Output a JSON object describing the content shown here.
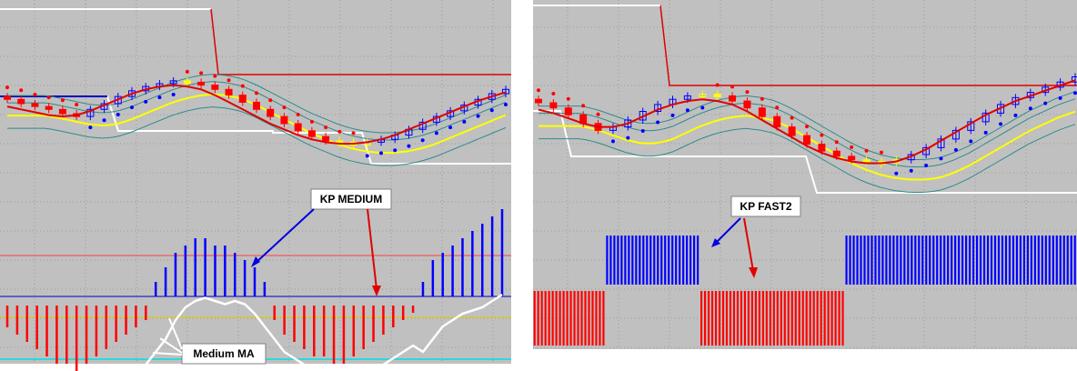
{
  "colors": {
    "background": "#c0c0c0",
    "grid": "#9a9a9a",
    "bull_candle": "#0000ff",
    "bear_candle": "#ff0000",
    "neutral_candle": "#ffff00",
    "ma_red": "#e00000",
    "ma_yellow": "#ffff00",
    "band_teal": "#2e8b8b",
    "envelope_white": "#ffffff",
    "histogram_up": "#0000ff",
    "histogram_down": "#ff0000",
    "level_red": "#ff4040",
    "level_blue": "#0000c0",
    "level_yellow": "#e0d000",
    "level_cyan": "#00e0e0",
    "arrow_blue": "#0000e0",
    "arrow_red": "#e00000"
  },
  "chart_data": [
    {
      "type": "bar",
      "panel": "left",
      "callouts": [
        "KP MEDIUM",
        "Medium MA"
      ],
      "price": {
        "closes": [
          115,
          112,
          110,
          108,
          105,
          103,
          108,
          112,
          117,
          121,
          124,
          126,
          128,
          127,
          125,
          122,
          118,
          113,
          108,
          103,
          98,
          93,
          89,
          86,
          85,
          84,
          85,
          87,
          90,
          94,
          99,
          103,
          107,
          111,
          115,
          119,
          122
        ],
        "red_ma": [
          110,
          108,
          106,
          104,
          103,
          104,
          107,
          111,
          115,
          119,
          122,
          124,
          125,
          124,
          122,
          118,
          113,
          108,
          103,
          98,
          94,
          90,
          87,
          85,
          84,
          84,
          85,
          87,
          90,
          94,
          98,
          102,
          106,
          110,
          114,
          117,
          120
        ]
      },
      "histogram": {
        "values": [
          -3,
          -4,
          -5,
          -6,
          -7,
          -8,
          -8,
          -9,
          -8,
          -7,
          -6,
          -5,
          -4,
          -3,
          -2,
          2,
          4,
          6,
          7,
          8,
          8,
          7,
          7,
          6,
          5,
          4,
          2,
          -2,
          -4,
          -5,
          -6,
          -7,
          -7,
          -8,
          -8,
          -7,
          -6,
          -5,
          -4,
          -3,
          -2,
          -1,
          2,
          5,
          6,
          7,
          8,
          9,
          10,
          11,
          12
        ]
      },
      "medium_ma": [
        -6,
        -7,
        -6.5,
        -7.5,
        -7,
        -6,
        -6.5,
        -7,
        -6.5,
        -7.5,
        -8,
        -6.5,
        -7,
        -7.5,
        -5,
        -3,
        -1,
        2,
        4,
        5,
        5.5,
        5,
        4.5,
        5,
        4.5,
        3,
        1,
        -1,
        -3,
        -4,
        -5,
        -5.5,
        -6,
        -6.5,
        -7,
        -7.5,
        -7,
        -6,
        -5,
        -4,
        -3,
        -2,
        -3,
        -1,
        1,
        2,
        3,
        3.5,
        4,
        5,
        6
      ]
    },
    {
      "type": "bar",
      "panel": "right",
      "callouts": [
        "KP FAST2"
      ],
      "price": {
        "closes": [
          120,
          117,
          113,
          108,
          104,
          106,
          110,
          115,
          119,
          122,
          124,
          125,
          124,
          121,
          117,
          112,
          106,
          101,
          96,
          92,
          89,
          87,
          86,
          86,
          87,
          90,
          94,
          99,
          104,
          109,
          114,
          119,
          123,
          126,
          129,
          132,
          135
        ],
        "red_ma": [
          116,
          114,
          111,
          108,
          106,
          106,
          108,
          112,
          116,
          119,
          121,
          122,
          121,
          119,
          115,
          110,
          105,
          100,
          95,
          91,
          88,
          86,
          85,
          85,
          86,
          89,
          93,
          98,
          103,
          108,
          113,
          117,
          121,
          124,
          127,
          130,
          133
        ]
      },
      "signal_blocks": [
        -1,
        -1,
        -1,
        -1,
        -1,
        -1,
        -1,
        -1,
        -1,
        -1,
        -1,
        -1,
        -1,
        -1,
        -1,
        -1,
        -1,
        -1,
        -1,
        -1,
        1,
        1,
        1,
        1,
        1,
        1,
        1,
        1,
        1,
        1,
        1,
        1,
        1,
        1,
        1,
        1,
        1,
        1,
        1,
        1,
        1,
        1,
        1,
        1,
        1,
        1,
        -1,
        -1,
        -1,
        -1,
        -1,
        -1,
        -1,
        -1,
        -1,
        -1,
        -1,
        -1,
        -1,
        -1,
        -1,
        -1,
        -1,
        -1,
        -1,
        -1,
        -1,
        -1,
        -1,
        -1,
        -1,
        -1,
        -1,
        -1,
        -1,
        -1,
        -1,
        -1,
        -1,
        -1,
        -1,
        -1,
        -1,
        -1,
        -1,
        -1,
        1,
        1,
        1,
        1,
        1,
        1,
        1,
        1,
        1,
        1,
        1,
        1,
        1,
        1,
        1,
        1,
        1,
        1,
        1,
        1,
        1,
        1,
        1,
        1,
        1,
        1,
        1,
        1,
        1,
        1,
        1,
        1,
        1,
        1,
        1,
        1,
        1,
        1,
        1,
        1,
        1,
        1,
        1,
        1,
        1,
        1,
        1,
        1,
        1,
        1,
        1,
        1,
        1,
        1,
        1,
        1,
        1,
        1,
        1,
        1,
        1,
        1,
        1,
        1
      ]
    }
  ]
}
